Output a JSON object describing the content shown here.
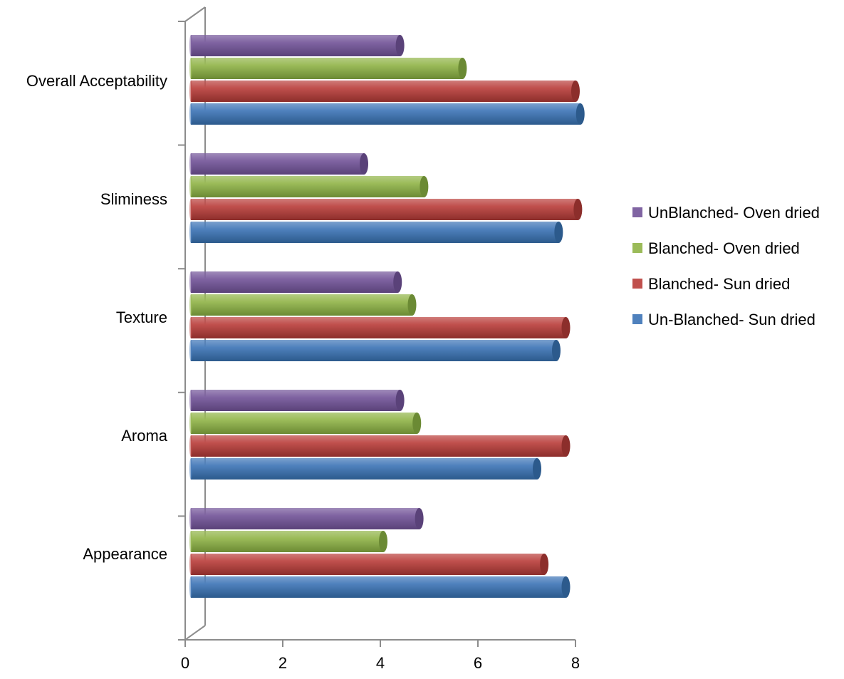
{
  "chart_data": {
    "type": "bar",
    "orientation": "horizontal",
    "style": "3d-cylinder",
    "categories": [
      "Appearance",
      "Aroma",
      "Texture",
      "Sliminess",
      "Overall Acceptability"
    ],
    "series": [
      {
        "name": "Un-Blanched- Sun dried",
        "color": "#4F81BD",
        "dark": "#2C5A8C",
        "values": [
          7.8,
          7.2,
          7.6,
          7.65,
          8.1
        ]
      },
      {
        "name": "Blanched- Sun dried",
        "color": "#C0504D",
        "dark": "#8C2E2B",
        "values": [
          7.35,
          7.8,
          7.8,
          8.05,
          8.0
        ]
      },
      {
        "name": "Blanched- Oven dried",
        "color": "#9BBB59",
        "dark": "#6B8A34",
        "values": [
          4.0,
          4.7,
          4.6,
          4.85,
          5.65
        ]
      },
      {
        "name": "UnBlanched- Oven dried",
        "color": "#8064A2",
        "dark": "#5A4279",
        "values": [
          4.75,
          4.35,
          4.3,
          3.6,
          4.35
        ]
      }
    ],
    "legend_order": [
      "UnBlanched- Oven dried",
      "Blanched- Oven dried",
      "Blanched- Sun dried",
      "Un-Blanched- Sun dried"
    ],
    "xlim": [
      0,
      8
    ],
    "xticks": [
      "0",
      "2",
      "4",
      "6",
      "8"
    ],
    "grid": false,
    "legend_position": "right"
  }
}
